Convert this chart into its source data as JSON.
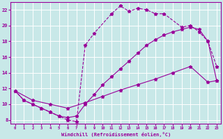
{
  "background_color": "#c8e8e8",
  "grid_color": "#ffffff",
  "line_color": "#990099",
  "xlabel": "Windchill (Refroidissement éolien,°C)",
  "xlim": [
    -0.5,
    23.5
  ],
  "ylim": [
    7.5,
    23.0
  ],
  "yticks": [
    8,
    10,
    12,
    14,
    16,
    18,
    20,
    22
  ],
  "xticks": [
    0,
    1,
    2,
    3,
    4,
    5,
    6,
    7,
    8,
    9,
    10,
    11,
    12,
    13,
    14,
    15,
    16,
    17,
    18,
    19,
    20,
    21,
    22,
    23
  ],
  "curve_dashed_x": [
    0,
    1,
    2,
    3,
    4,
    5,
    6,
    7,
    8,
    9,
    11,
    12,
    13,
    14,
    15,
    16,
    17,
    19,
    20,
    21,
    22,
    23
  ],
  "curve_dashed_y": [
    11.7,
    10.5,
    10.0,
    9.5,
    9.0,
    8.5,
    8.0,
    7.8,
    17.5,
    19.0,
    21.5,
    22.5,
    21.8,
    22.2,
    22.0,
    21.5,
    21.5,
    19.8,
    20.0,
    19.2,
    18.0,
    14.8
  ],
  "curve_solid_upper_x": [
    0,
    1,
    2,
    3,
    4,
    5,
    6,
    7,
    8,
    9,
    10,
    11,
    12,
    13,
    14,
    15,
    16,
    17,
    18,
    19,
    20,
    21,
    22,
    23
  ],
  "curve_solid_upper_y": [
    11.7,
    10.5,
    10.0,
    9.5,
    9.0,
    8.5,
    8.3,
    8.5,
    10.0,
    11.2,
    12.5,
    13.5,
    14.5,
    15.5,
    16.5,
    17.5,
    18.2,
    18.8,
    19.2,
    19.5,
    19.8,
    19.5,
    18.0,
    13.0
  ],
  "curve_solid_lower_x": [
    0,
    2,
    4,
    6,
    8,
    10,
    12,
    14,
    16,
    18,
    20,
    22,
    23
  ],
  "curve_solid_lower_y": [
    11.7,
    10.5,
    10.0,
    9.5,
    10.2,
    11.0,
    11.8,
    12.5,
    13.2,
    14.0,
    14.8,
    12.8,
    13.0
  ]
}
